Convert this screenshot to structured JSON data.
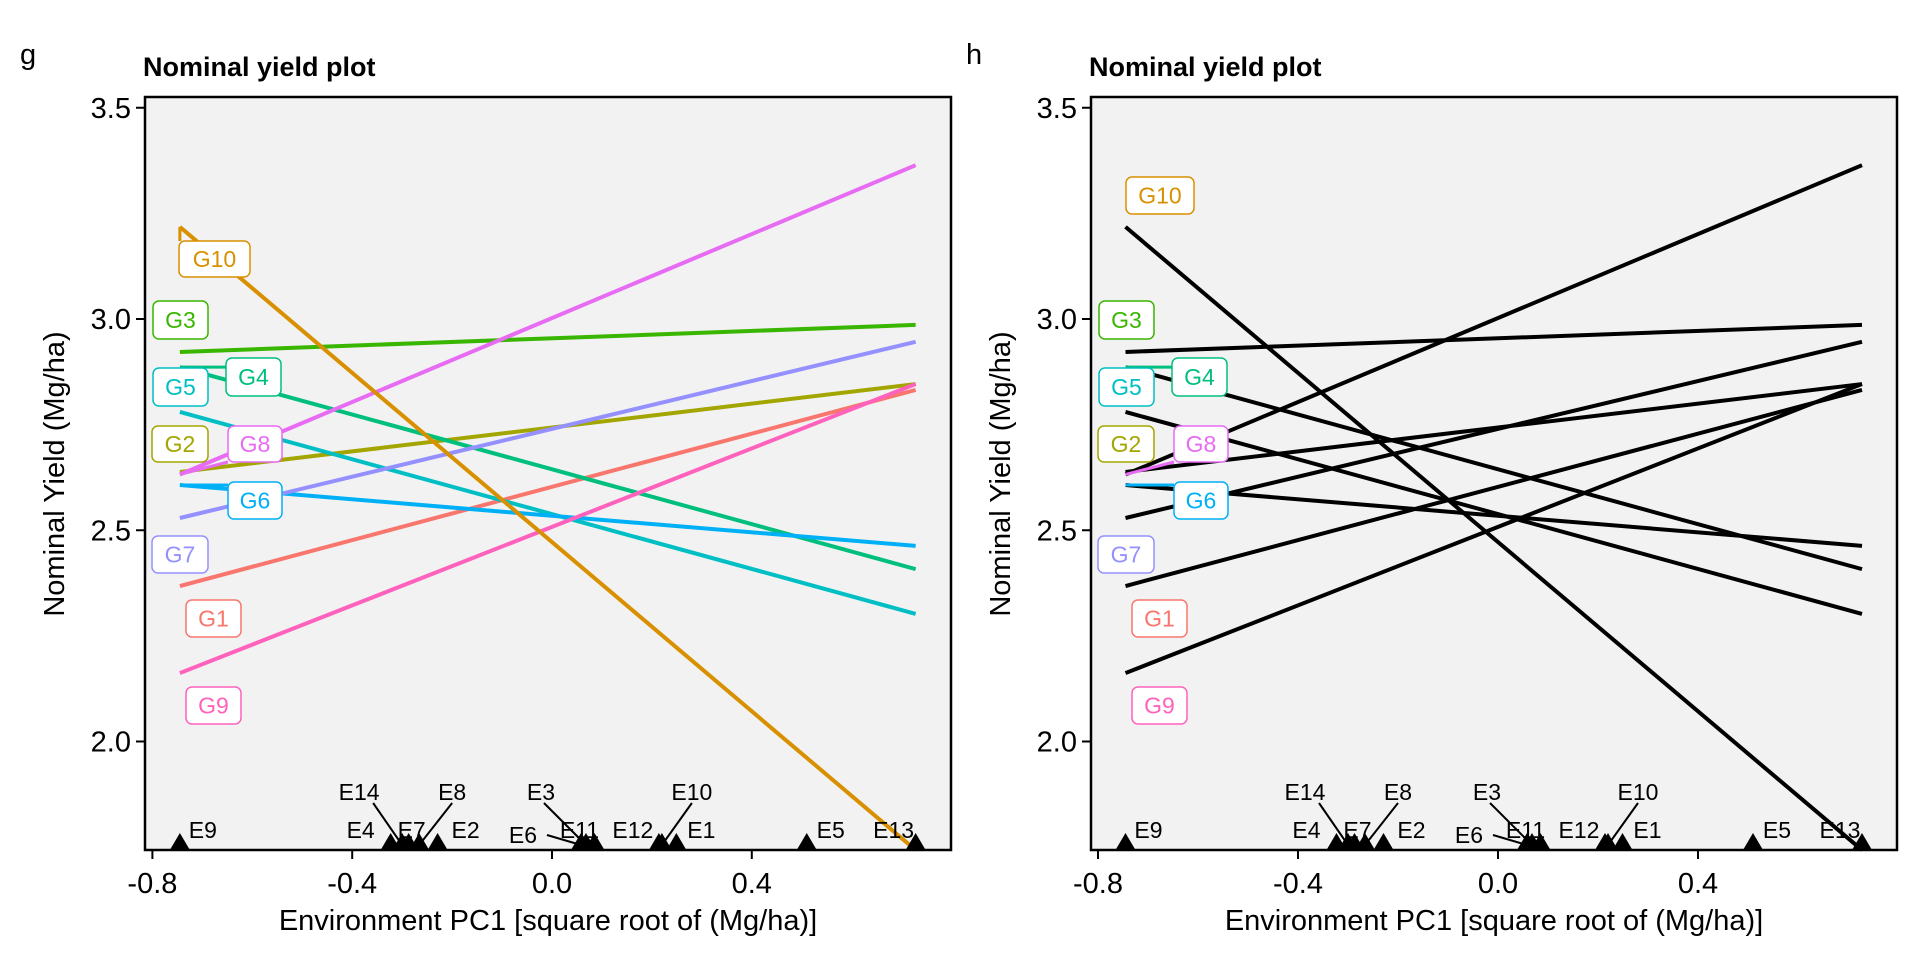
{
  "chart_data": [
    {
      "panel_tag": "g",
      "type": "line",
      "title": "Nominal yield plot",
      "xlabel": "Environment PC1 [square root of  (Mg/ha)]",
      "ylabel": "Nominal Yield (Mg/ha)",
      "xlim": [
        -0.81,
        0.8
      ],
      "ylim": [
        1.74,
        3.52
      ],
      "x_ticks": [
        -0.8,
        -0.4,
        0.0,
        0.4
      ],
      "x_tick_labels": [
        "-0.8",
        "-0.4",
        "0.0",
        "0.4"
      ],
      "y_ticks": [
        2.0,
        2.5,
        3.0,
        3.5
      ],
      "y_tick_labels": [
        "2.0",
        "2.5",
        "3.0",
        "3.5"
      ],
      "grid": false,
      "colored_lines": true,
      "series": [
        {
          "name": "G1",
          "color": "#F8766D",
          "x": [
            -0.745,
            0.728
          ],
          "y": [
            2.368,
            2.832
          ]
        },
        {
          "name": "G2",
          "color": "#A3A500",
          "x": [
            -0.745,
            0.728
          ],
          "y": [
            2.638,
            2.846
          ]
        },
        {
          "name": "G3",
          "color": "#39B600",
          "x": [
            -0.745,
            0.728
          ],
          "y": [
            2.922,
            2.986
          ]
        },
        {
          "name": "G4",
          "color": "#00BF7D",
          "x": [
            -0.745,
            0.728
          ],
          "y": [
            2.886,
            2.408
          ]
        },
        {
          "name": "G5",
          "color": "#00BFC4",
          "x": [
            -0.745,
            0.728
          ],
          "y": [
            2.78,
            2.302
          ]
        },
        {
          "name": "G6",
          "color": "#00B0F6",
          "x": [
            -0.745,
            0.728
          ],
          "y": [
            2.607,
            2.463
          ]
        },
        {
          "name": "G7",
          "color": "#9590FF",
          "x": [
            -0.745,
            0.728
          ],
          "y": [
            2.529,
            2.946
          ]
        },
        {
          "name": "G8",
          "color": "#E76BF3",
          "x": [
            -0.745,
            0.728
          ],
          "y": [
            2.632,
            3.364
          ]
        },
        {
          "name": "G9",
          "color": "#FF62BC",
          "x": [
            -0.745,
            0.728
          ],
          "y": [
            2.162,
            2.846
          ]
        },
        {
          "name": "G10",
          "color": "#D89000",
          "x": [
            -0.745,
            0.728
          ],
          "y": [
            3.218,
            1.743
          ]
        }
      ],
      "environments": [
        {
          "name": "E9",
          "x": -0.745
        },
        {
          "name": "E4",
          "x": -0.323
        },
        {
          "name": "E14",
          "x": -0.3
        },
        {
          "name": "E7",
          "x": -0.287
        },
        {
          "name": "E8",
          "x": -0.266
        },
        {
          "name": "E2",
          "x": -0.229
        },
        {
          "name": "E6",
          "x": 0.058
        },
        {
          "name": "E3",
          "x": 0.068
        },
        {
          "name": "E11",
          "x": 0.085
        },
        {
          "name": "E12",
          "x": 0.214
        },
        {
          "name": "E10",
          "x": 0.22
        },
        {
          "name": "E1",
          "x": 0.249
        },
        {
          "name": "E5",
          "x": 0.51
        },
        {
          "name": "E13",
          "x": 0.728
        }
      ]
    },
    {
      "panel_tag": "h",
      "type": "line",
      "title": "Nominal yield plot",
      "xlabel": "Environment PC1 [square root of  (Mg/ha)]",
      "ylabel": "Nominal Yield (Mg/ha)",
      "xlim": [
        -0.81,
        0.8
      ],
      "ylim": [
        1.74,
        3.52
      ],
      "x_ticks": [
        -0.8,
        -0.4,
        0.0,
        0.4
      ],
      "x_tick_labels": [
        "-0.8",
        "-0.4",
        "0.0",
        "0.4"
      ],
      "y_ticks": [
        2.0,
        2.5,
        3.0,
        3.5
      ],
      "y_tick_labels": [
        "2.0",
        "2.5",
        "3.0",
        "3.5"
      ],
      "grid": false,
      "colored_lines": false,
      "line_color": "#000000",
      "series": [
        {
          "name": "G1",
          "color": "#F8766D",
          "x": [
            -0.745,
            0.728
          ],
          "y": [
            2.368,
            2.832
          ]
        },
        {
          "name": "G2",
          "color": "#A3A500",
          "x": [
            -0.745,
            0.728
          ],
          "y": [
            2.638,
            2.846
          ]
        },
        {
          "name": "G3",
          "color": "#39B600",
          "x": [
            -0.745,
            0.728
          ],
          "y": [
            2.922,
            2.986
          ]
        },
        {
          "name": "G4",
          "color": "#00BF7D",
          "x": [
            -0.745,
            0.728
          ],
          "y": [
            2.886,
            2.408
          ]
        },
        {
          "name": "G5",
          "color": "#00BFC4",
          "x": [
            -0.745,
            0.728
          ],
          "y": [
            2.78,
            2.302
          ]
        },
        {
          "name": "G6",
          "color": "#00B0F6",
          "x": [
            -0.745,
            0.728
          ],
          "y": [
            2.607,
            2.463
          ]
        },
        {
          "name": "G7",
          "color": "#9590FF",
          "x": [
            -0.745,
            0.728
          ],
          "y": [
            2.529,
            2.946
          ]
        },
        {
          "name": "G8",
          "color": "#E76BF3",
          "x": [
            -0.745,
            0.728
          ],
          "y": [
            2.632,
            3.364
          ]
        },
        {
          "name": "G9",
          "color": "#FF62BC",
          "x": [
            -0.745,
            0.728
          ],
          "y": [
            2.162,
            2.846
          ]
        },
        {
          "name": "G10",
          "color": "#D89000",
          "x": [
            -0.745,
            0.728
          ],
          "y": [
            3.218,
            1.743
          ]
        }
      ],
      "environments": [
        {
          "name": "E9",
          "x": -0.745
        },
        {
          "name": "E4",
          "x": -0.323
        },
        {
          "name": "E14",
          "x": -0.3
        },
        {
          "name": "E7",
          "x": -0.287
        },
        {
          "name": "E8",
          "x": -0.266
        },
        {
          "name": "E2",
          "x": -0.229
        },
        {
          "name": "E6",
          "x": 0.058
        },
        {
          "name": "E3",
          "x": 0.068
        },
        {
          "name": "E11",
          "x": 0.085
        },
        {
          "name": "E12",
          "x": 0.214
        },
        {
          "name": "E10",
          "x": 0.22
        },
        {
          "name": "E1",
          "x": 0.249
        },
        {
          "name": "E5",
          "x": 0.51
        },
        {
          "name": "E13",
          "x": 0.728
        }
      ]
    }
  ]
}
